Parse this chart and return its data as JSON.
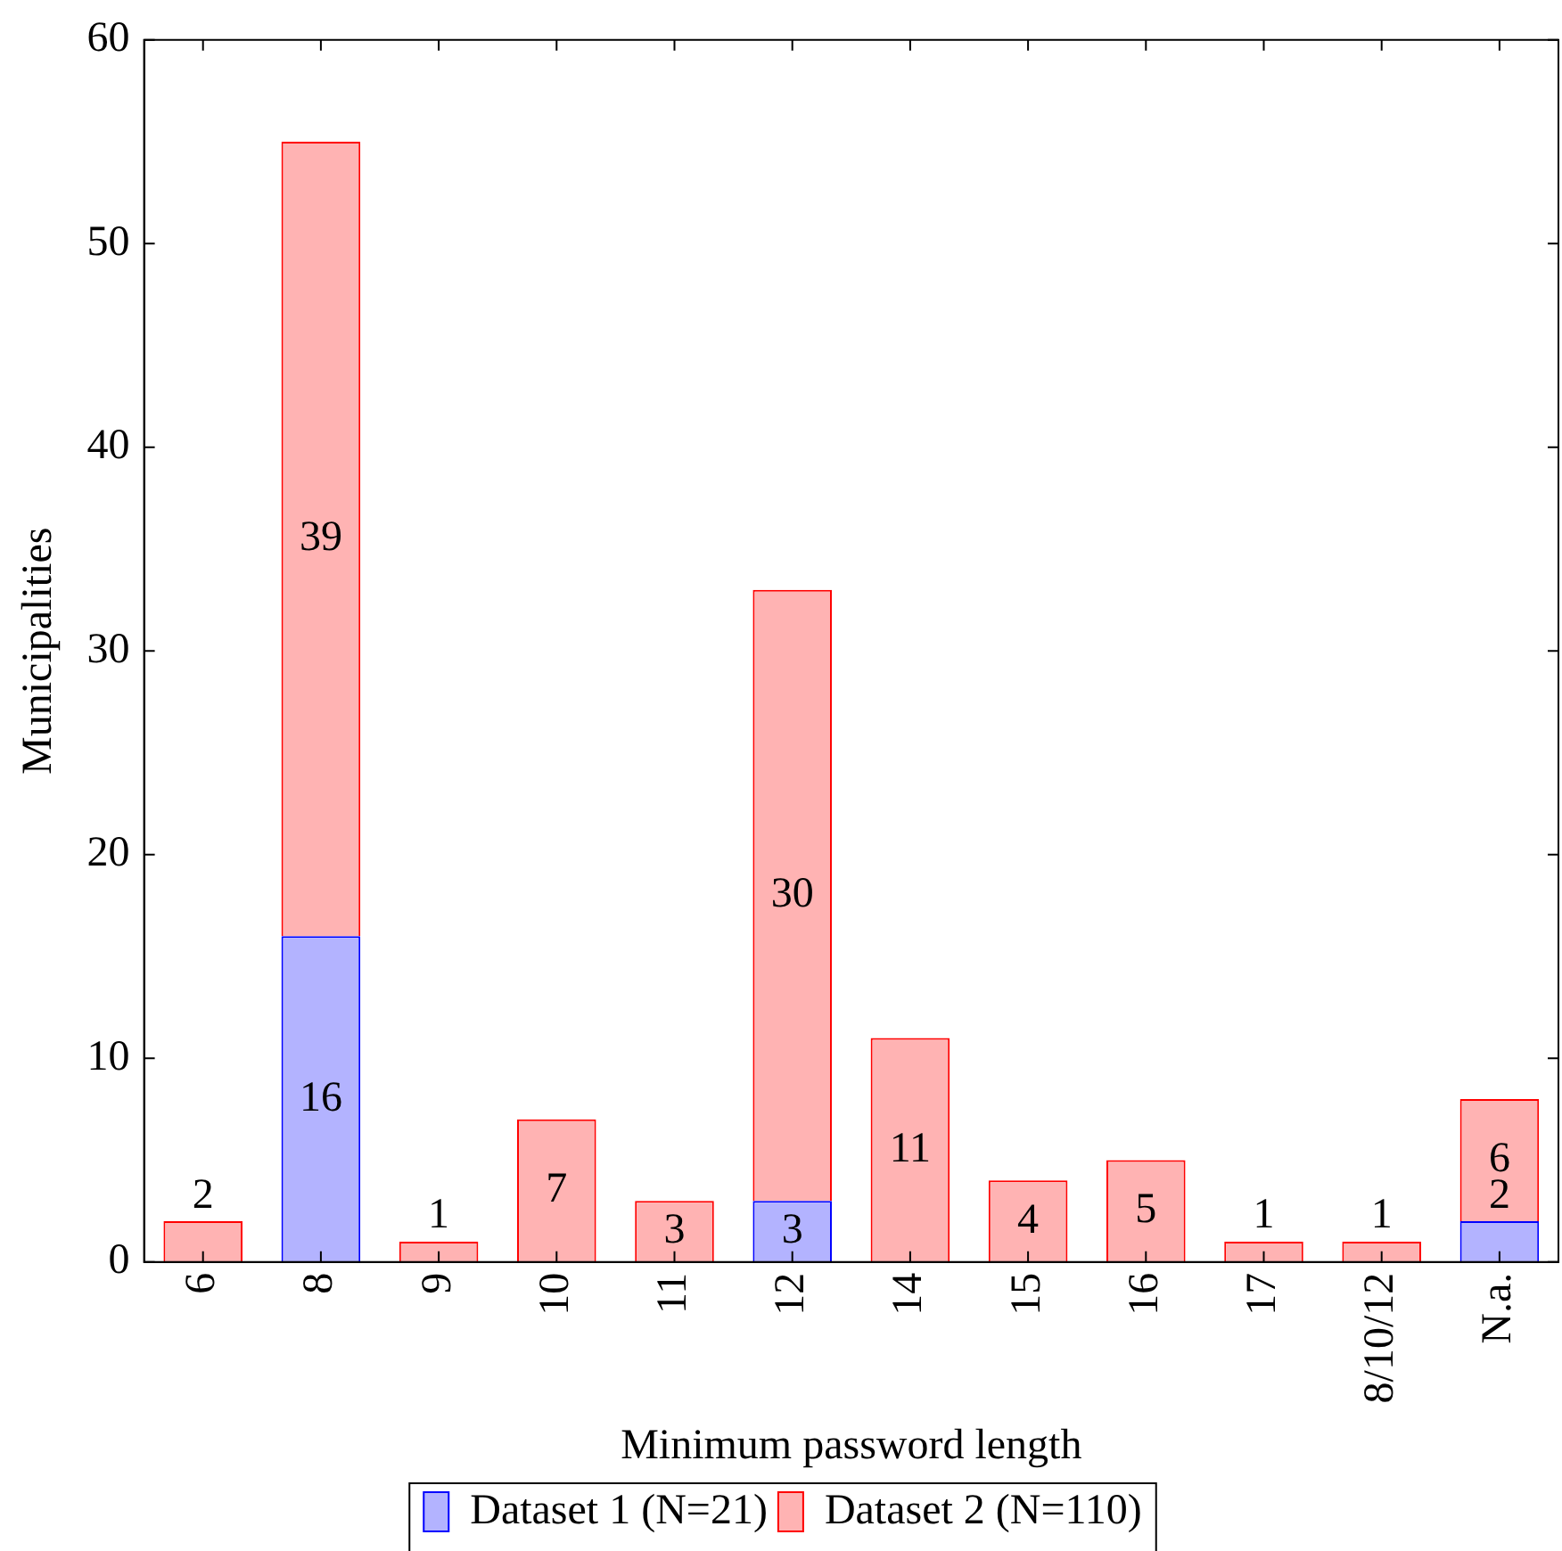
{
  "chart_data": {
    "type": "bar",
    "stacked": true,
    "xlabel": "Minimum password length",
    "ylabel": "Municipalities",
    "categories": [
      "6",
      "8",
      "9",
      "10",
      "11",
      "12",
      "14",
      "15",
      "16",
      "17",
      "8/10/12",
      "N.a."
    ],
    "series": [
      {
        "name": "Dataset 1 (N=21)",
        "color": "#b3b3ff",
        "values": [
          null,
          16,
          null,
          null,
          null,
          3,
          null,
          null,
          null,
          null,
          null,
          2
        ]
      },
      {
        "name": "Dataset 2 (N=110)",
        "color": "#ffb3b3",
        "values": [
          2,
          39,
          1,
          7,
          3,
          30,
          11,
          4,
          5,
          1,
          1,
          6
        ]
      }
    ],
    "ylim": [
      0,
      60
    ],
    "yticks": [
      0,
      10,
      20,
      30,
      40,
      50,
      60
    ],
    "grid": false,
    "legend": "bottom",
    "data_labels": true
  }
}
